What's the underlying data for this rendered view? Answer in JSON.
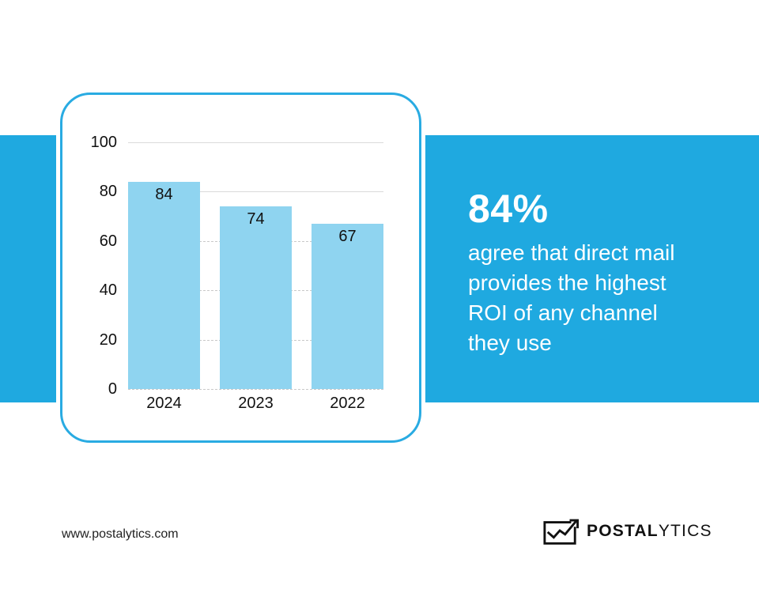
{
  "band": {
    "color": "#1fa9e0"
  },
  "card": {
    "border_color": "#29abe2",
    "background": "#ffffff"
  },
  "chart_data": {
    "type": "bar",
    "categories": [
      "2024",
      "2023",
      "2022"
    ],
    "values": [
      84,
      74,
      67
    ],
    "value_labels": [
      "84",
      "74",
      "67"
    ],
    "title": "",
    "xlabel": "",
    "ylabel": "",
    "ylim": [
      0,
      100
    ],
    "yticks": [
      0,
      20,
      40,
      60,
      80,
      100
    ],
    "grid": "horizontal",
    "legend": "none",
    "bar_color": "#8fd4f0",
    "gridline_color": "#dadada",
    "tick_text_color": "#111111"
  },
  "callout": {
    "stat": "84%",
    "lines": [
      "agree that direct mail",
      "provides the highest",
      "ROI of any channel",
      "they use"
    ],
    "text_color": "#ffffff"
  },
  "footer": {
    "url": "www.postalytics.com",
    "brand_bold": "POSTAL",
    "brand_light": "YTICS"
  }
}
